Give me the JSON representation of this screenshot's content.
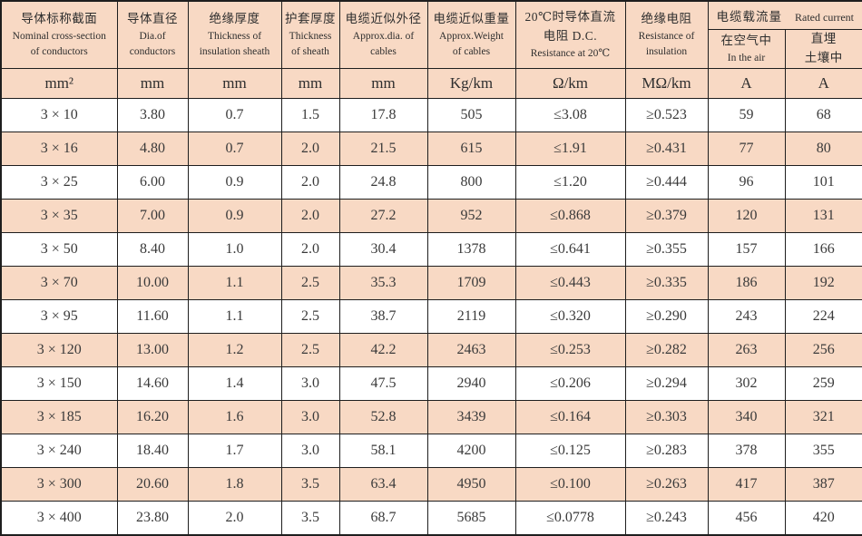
{
  "colors": {
    "stripe_and_header_bg": "#f8d9c4",
    "border": "#1e1e1e",
    "text": "#2e2e2e"
  },
  "table": {
    "columns": [
      {
        "zh": "导体标称截面",
        "en1": "Nominal cross-section",
        "en2": "of conductors",
        "unit": "mm²"
      },
      {
        "zh": "导体直径",
        "en1": "Dia.of",
        "en2": "conductors",
        "unit": "mm"
      },
      {
        "zh": "绝缘厚度",
        "en1": "Thickness of",
        "en2": "insulation sheath",
        "unit": "mm"
      },
      {
        "zh": "护套厚度",
        "en1": "Thickness",
        "en2": "of sheath",
        "unit": "mm"
      },
      {
        "zh": "电缆近似外径",
        "en1": "Approx.dia. of",
        "en2": "cables",
        "unit": "mm"
      },
      {
        "zh": "电缆近似重量",
        "en1": "Approx.Weight",
        "en2": "of cables",
        "unit": "Kg/km"
      },
      {
        "zh": "20℃时导体直流",
        "en1": "电阻 D.C.",
        "en2": "Resistance at 20℃",
        "unit": "Ω/km"
      },
      {
        "zh": "绝缘电阻",
        "en1": "Resistance of",
        "en2": "insulation",
        "unit": "MΩ/km"
      }
    ],
    "rated_current_group": {
      "zh": "电缆载流量",
      "en": "Rated current",
      "sub_in_air": {
        "line1": "在空气中",
        "line2": "In the air",
        "unit": "A"
      },
      "sub_buried": {
        "line1": "直埋",
        "line2": "土壤中",
        "unit": "A"
      }
    },
    "rows": [
      [
        "3 × 10",
        "3.80",
        "0.7",
        "1.5",
        "17.8",
        "505",
        "≤3.08",
        "≥0.523",
        "59",
        "68"
      ],
      [
        "3 × 16",
        "4.80",
        "0.7",
        "2.0",
        "21.5",
        "615",
        "≤1.91",
        "≥0.431",
        "77",
        "80"
      ],
      [
        "3 × 25",
        "6.00",
        "0.9",
        "2.0",
        "24.8",
        "800",
        "≤1.20",
        "≥0.444",
        "96",
        "101"
      ],
      [
        "3 × 35",
        "7.00",
        "0.9",
        "2.0",
        "27.2",
        "952",
        "≤0.868",
        "≥0.379",
        "120",
        "131"
      ],
      [
        "3 × 50",
        "8.40",
        "1.0",
        "2.0",
        "30.4",
        "1378",
        "≤0.641",
        "≥0.355",
        "157",
        "166"
      ],
      [
        "3 × 70",
        "10.00",
        "1.1",
        "2.5",
        "35.3",
        "1709",
        "≤0.443",
        "≥0.335",
        "186",
        "192"
      ],
      [
        "3 × 95",
        "11.60",
        "1.1",
        "2.5",
        "38.7",
        "2119",
        "≤0.320",
        "≥0.290",
        "243",
        "224"
      ],
      [
        "3 × 120",
        "13.00",
        "1.2",
        "2.5",
        "42.2",
        "2463",
        "≤0.253",
        "≥0.282",
        "263",
        "256"
      ],
      [
        "3 × 150",
        "14.60",
        "1.4",
        "3.0",
        "47.5",
        "2940",
        "≤0.206",
        "≥0.294",
        "302",
        "259"
      ],
      [
        "3 × 185",
        "16.20",
        "1.6",
        "3.0",
        "52.8",
        "3439",
        "≤0.164",
        "≥0.303",
        "340",
        "321"
      ],
      [
        "3 × 240",
        "18.40",
        "1.7",
        "3.0",
        "58.1",
        "4200",
        "≤0.125",
        "≥0.283",
        "378",
        "355"
      ],
      [
        "3 × 300",
        "20.60",
        "1.8",
        "3.5",
        "63.4",
        "4950",
        "≤0.100",
        "≥0.263",
        "417",
        "387"
      ],
      [
        "3 × 400",
        "23.80",
        "2.0",
        "3.5",
        "68.7",
        "5685",
        "≤0.0778",
        "≥0.243",
        "456",
        "420"
      ]
    ]
  }
}
